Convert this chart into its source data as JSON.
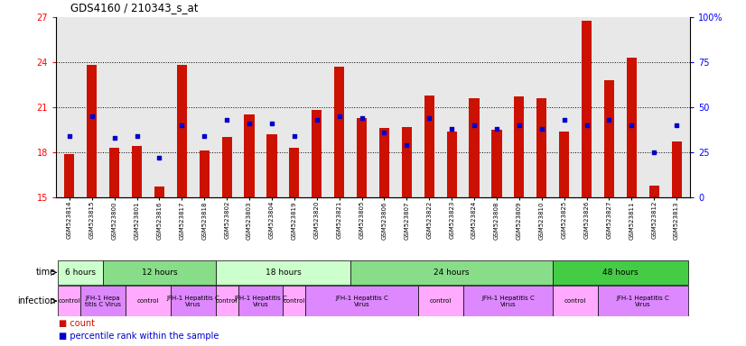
{
  "title": "GDS4160 / 210343_s_at",
  "samples": [
    "GSM523814",
    "GSM523815",
    "GSM523800",
    "GSM523801",
    "GSM523816",
    "GSM523817",
    "GSM523818",
    "GSM523802",
    "GSM523803",
    "GSM523804",
    "GSM523819",
    "GSM523820",
    "GSM523821",
    "GSM523805",
    "GSM523806",
    "GSM523807",
    "GSM523822",
    "GSM523823",
    "GSM523824",
    "GSM523808",
    "GSM523809",
    "GSM523810",
    "GSM523825",
    "GSM523826",
    "GSM523827",
    "GSM523811",
    "GSM523812",
    "GSM523813"
  ],
  "counts": [
    17.9,
    23.8,
    18.3,
    18.4,
    15.7,
    23.8,
    18.1,
    19.0,
    20.5,
    19.2,
    18.3,
    20.8,
    23.7,
    20.3,
    19.6,
    19.7,
    21.8,
    19.4,
    21.6,
    19.5,
    21.7,
    21.6,
    19.4,
    26.8,
    22.8,
    24.3,
    15.8,
    18.7
  ],
  "percentiles": [
    34,
    45,
    33,
    34,
    22,
    40,
    34,
    43,
    41,
    41,
    34,
    43,
    45,
    44,
    36,
    29,
    44,
    38,
    40,
    38,
    40,
    38,
    43,
    40,
    43,
    40,
    25,
    40
  ],
  "ylim_left": [
    15,
    27
  ],
  "yticks_left": [
    15,
    18,
    21,
    24,
    27
  ],
  "ylim_right": [
    0,
    100
  ],
  "yticks_right": [
    0,
    25,
    50,
    75,
    100
  ],
  "bar_color": "#cc1100",
  "dot_color": "#0000cc",
  "bg_color": "#e8e8e8",
  "time_groups": [
    {
      "label": "6 hours",
      "start": 0,
      "end": 2,
      "color": "#ccffcc"
    },
    {
      "label": "12 hours",
      "start": 2,
      "end": 7,
      "color": "#88dd88"
    },
    {
      "label": "18 hours",
      "start": 7,
      "end": 13,
      "color": "#ccffcc"
    },
    {
      "label": "24 hours",
      "start": 13,
      "end": 22,
      "color": "#88dd88"
    },
    {
      "label": "48 hours",
      "start": 22,
      "end": 28,
      "color": "#44cc44"
    }
  ],
  "infection_groups": [
    {
      "label": "control",
      "start": 0,
      "end": 1,
      "color": "#ffaaff"
    },
    {
      "label": "JFH-1 Hepa\ntitis C Virus",
      "start": 1,
      "end": 3,
      "color": "#dd88ff"
    },
    {
      "label": "control",
      "start": 3,
      "end": 5,
      "color": "#ffaaff"
    },
    {
      "label": "JFH-1 Hepatitis C\nVirus",
      "start": 5,
      "end": 7,
      "color": "#dd88ff"
    },
    {
      "label": "control",
      "start": 7,
      "end": 8,
      "color": "#ffaaff"
    },
    {
      "label": "JFH-1 Hepatitis C\nVirus",
      "start": 8,
      "end": 10,
      "color": "#dd88ff"
    },
    {
      "label": "control",
      "start": 10,
      "end": 11,
      "color": "#ffaaff"
    },
    {
      "label": "JFH-1 Hepatitis C\nVirus",
      "start": 11,
      "end": 16,
      "color": "#dd88ff"
    },
    {
      "label": "control",
      "start": 16,
      "end": 18,
      "color": "#ffaaff"
    },
    {
      "label": "JFH-1 Hepatitis C\nVirus",
      "start": 18,
      "end": 22,
      "color": "#dd88ff"
    },
    {
      "label": "control",
      "start": 22,
      "end": 24,
      "color": "#ffaaff"
    },
    {
      "label": "JFH-1 Hepatitis C\nVirus",
      "start": 24,
      "end": 28,
      "color": "#dd88ff"
    }
  ],
  "gridlines": [
    18,
    21,
    24
  ]
}
